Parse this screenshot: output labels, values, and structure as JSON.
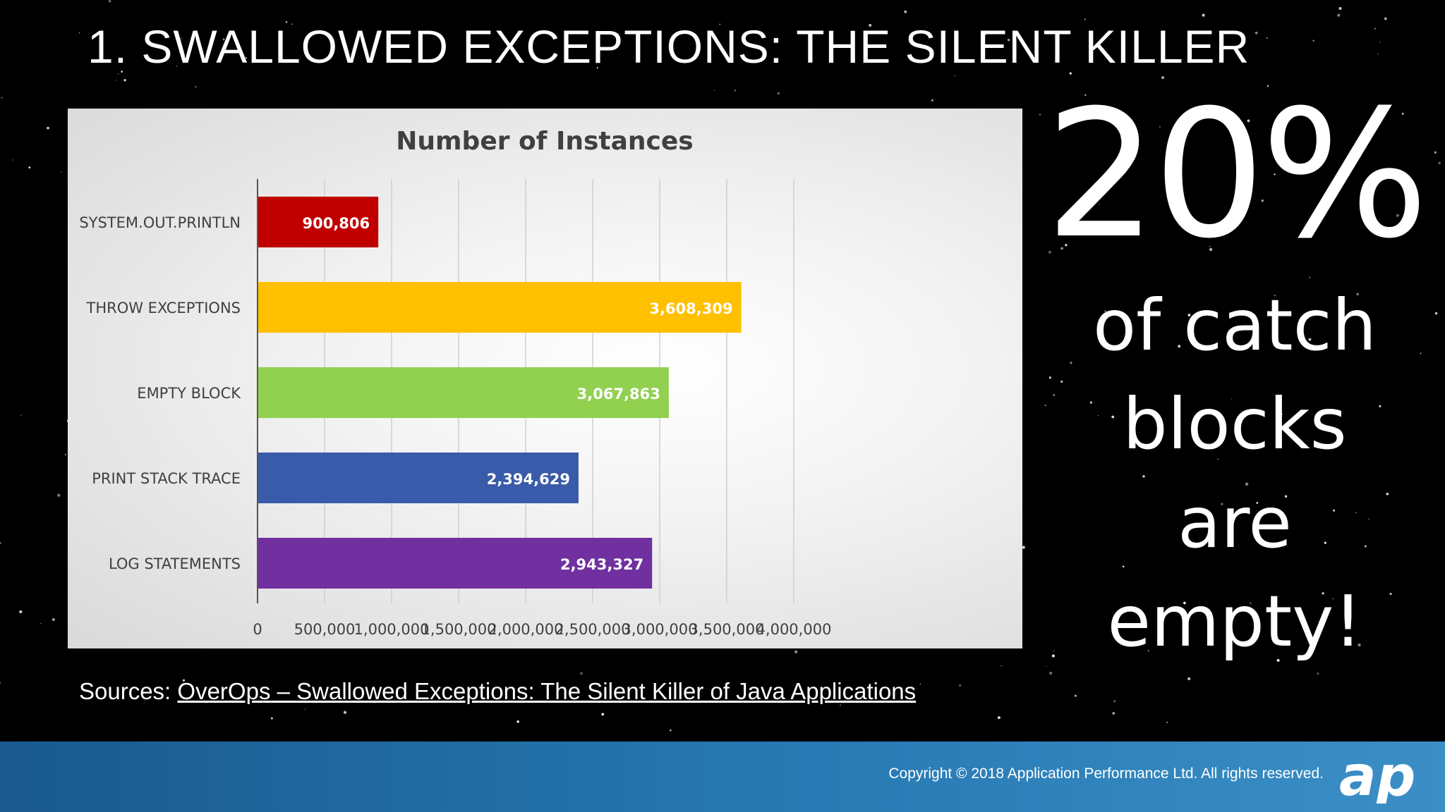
{
  "slide": {
    "title": "1. SWALLOWED EXCEPTIONS: THE SILENT KILLER",
    "stat_big": "20%",
    "stat_lines": [
      "of catch",
      "blocks",
      "are",
      "empty!"
    ],
    "sources_label": "Sources:",
    "sources_link": "OverOps – Swallowed Exceptions: The Silent Killer of Java Applications",
    "copyright": "Copyright © 2018 Application Performance Ltd. All rights reserved.",
    "logo_text": "ap"
  },
  "colors": {
    "background": "#000000",
    "footer": "#2779b3",
    "text": "#ffffff"
  },
  "chart_data": {
    "type": "bar",
    "orientation": "horizontal",
    "title": "Number of Instances",
    "xlabel": "",
    "ylabel": "",
    "categories": [
      "SYSTEM.OUT.PRINTLN",
      "THROW EXCEPTIONS",
      "EMPTY BLOCK",
      "PRINT STACK TRACE",
      "LOG STATEMENTS"
    ],
    "values": [
      900806,
      3608309,
      3067863,
      2394629,
      2943327
    ],
    "value_labels": [
      "900,806",
      "3,608,309",
      "3,067,863",
      "2,394,629",
      "2,943,327"
    ],
    "colors": [
      "#c00000",
      "#ffc000",
      "#92d050",
      "#3a5ba9",
      "#7030a0"
    ],
    "xlim": [
      0,
      4000000
    ],
    "xticks": [
      0,
      500000,
      1000000,
      1500000,
      2000000,
      2500000,
      3000000,
      3500000,
      4000000
    ],
    "xtick_labels": [
      "0",
      "500,000",
      "1,000,000",
      "1,500,000",
      "2,000,000",
      "2,500,000",
      "3,000,000",
      "3,500,000",
      "4,000,000"
    ],
    "grid": true,
    "legend": "none"
  }
}
